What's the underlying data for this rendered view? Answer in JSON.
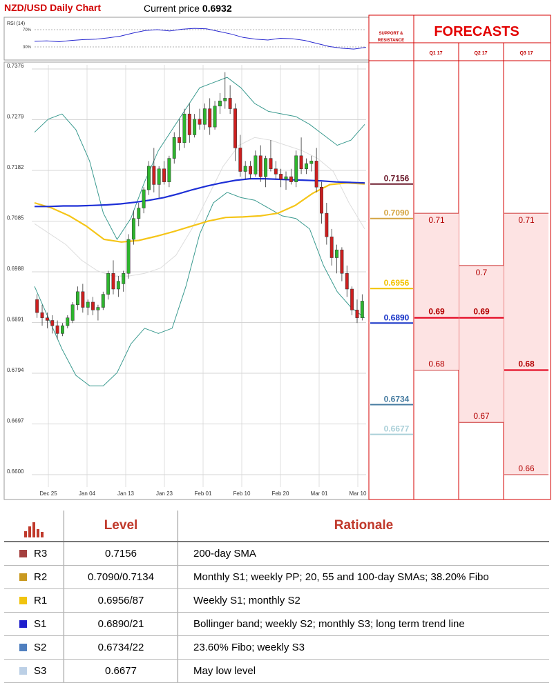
{
  "header": {
    "title": "NZD/USD Daily Chart",
    "price_label": "Current price ",
    "price_value": "0.6932"
  },
  "rsi": {
    "label": "RSI (14)",
    "levels": [
      "70%",
      "30%"
    ],
    "series": [
      0.43,
      0.44,
      0.42,
      0.45,
      0.47,
      0.48,
      0.51,
      0.55,
      0.62,
      0.68,
      0.7,
      0.67,
      0.71,
      0.73,
      0.72,
      0.66,
      0.6,
      0.52,
      0.48,
      0.46,
      0.5,
      0.49,
      0.45,
      0.38,
      0.31,
      0.27,
      0.25,
      0.29
    ]
  },
  "panel": {
    "sr_heading": [
      "SUPPORT &",
      "RESISTANCE"
    ],
    "forecast_heading": "FORECASTS",
    "quarters": [
      "Q1 17",
      "Q2 17",
      "Q3 17"
    ]
  },
  "colors": {
    "title": "#d10000",
    "candle_up": "#2db52d",
    "candle_down": "#cc1f1f",
    "sma200": "#1d2fd6",
    "sma_yellow": "#f5c518",
    "bollinger": "#3a9a8f",
    "forecast_fill": "#fde3e3",
    "forecast_line": "#e3001b",
    "panel_border": "#d40000"
  },
  "chart_data": {
    "type": "candlestick",
    "title": "NZD/USD Daily Chart",
    "y_ticks": [
      0.7376,
      0.7279,
      0.7182,
      0.7085,
      0.6988,
      0.6891,
      0.6794,
      0.6697,
      0.66
    ],
    "ylim": [
      0.66,
      0.7376
    ],
    "x_ticks": [
      "Dec 25",
      "Jan 04",
      "Jan 13",
      "Jan 23",
      "Feb 01",
      "Feb 10",
      "Feb 20",
      "Mar 01",
      "Mar 10"
    ],
    "grid": true,
    "candles": [
      [
        0.6935,
        0.6945,
        0.69,
        0.691
      ],
      [
        0.691,
        0.6925,
        0.6885,
        0.69
      ],
      [
        0.69,
        0.691,
        0.688,
        0.6895
      ],
      [
        0.6895,
        0.6905,
        0.687,
        0.6885
      ],
      [
        0.6885,
        0.6895,
        0.686,
        0.687
      ],
      [
        0.687,
        0.689,
        0.6865,
        0.6885
      ],
      [
        0.6885,
        0.6905,
        0.688,
        0.69
      ],
      [
        0.6895,
        0.693,
        0.689,
        0.6925
      ],
      [
        0.6925,
        0.696,
        0.6915,
        0.695
      ],
      [
        0.695,
        0.6965,
        0.691,
        0.692
      ],
      [
        0.692,
        0.6935,
        0.6905,
        0.693
      ],
      [
        0.693,
        0.694,
        0.6905,
        0.6915
      ],
      [
        0.6915,
        0.6925,
        0.6895,
        0.692
      ],
      [
        0.692,
        0.695,
        0.6915,
        0.6945
      ],
      [
        0.6945,
        0.699,
        0.6935,
        0.6985
      ],
      [
        0.6985,
        0.701,
        0.6945,
        0.6955
      ],
      [
        0.6955,
        0.698,
        0.694,
        0.697
      ],
      [
        0.6965,
        0.699,
        0.695,
        0.6985
      ],
      [
        0.6985,
        0.706,
        0.6975,
        0.705
      ],
      [
        0.705,
        0.7105,
        0.704,
        0.709
      ],
      [
        0.709,
        0.712,
        0.7075,
        0.711
      ],
      [
        0.711,
        0.715,
        0.71,
        0.7145
      ],
      [
        0.7145,
        0.72,
        0.7135,
        0.719
      ],
      [
        0.719,
        0.7225,
        0.714,
        0.7155
      ],
      [
        0.7155,
        0.719,
        0.713,
        0.7185
      ],
      [
        0.7185,
        0.72,
        0.7155,
        0.716
      ],
      [
        0.716,
        0.721,
        0.715,
        0.7205
      ],
      [
        0.7205,
        0.7255,
        0.7195,
        0.7245
      ],
      [
        0.7245,
        0.728,
        0.722,
        0.7235
      ],
      [
        0.7235,
        0.73,
        0.7225,
        0.729
      ],
      [
        0.729,
        0.731,
        0.7235,
        0.725
      ],
      [
        0.725,
        0.729,
        0.7245,
        0.728
      ],
      [
        0.728,
        0.73,
        0.726,
        0.727
      ],
      [
        0.727,
        0.731,
        0.726,
        0.73
      ],
      [
        0.73,
        0.732,
        0.725,
        0.7265
      ],
      [
        0.7265,
        0.7315,
        0.726,
        0.7305
      ],
      [
        0.7305,
        0.733,
        0.729,
        0.7315
      ],
      [
        0.7315,
        0.737,
        0.73,
        0.732
      ],
      [
        0.732,
        0.7345,
        0.729,
        0.73
      ],
      [
        0.73,
        0.731,
        0.72,
        0.7225
      ],
      [
        0.7225,
        0.725,
        0.717,
        0.718
      ],
      [
        0.718,
        0.72,
        0.7165,
        0.719
      ],
      [
        0.719,
        0.72,
        0.7165,
        0.7175
      ],
      [
        0.7175,
        0.722,
        0.717,
        0.721
      ],
      [
        0.721,
        0.723,
        0.716,
        0.717
      ],
      [
        0.717,
        0.721,
        0.715,
        0.7205
      ],
      [
        0.7205,
        0.724,
        0.718,
        0.7185
      ],
      [
        0.7185,
        0.72,
        0.7165,
        0.7175
      ],
      [
        0.7175,
        0.7185,
        0.715,
        0.7165
      ],
      [
        0.7165,
        0.718,
        0.7145,
        0.717
      ],
      [
        0.717,
        0.7185,
        0.7155,
        0.716
      ],
      [
        0.716,
        0.722,
        0.715,
        0.721
      ],
      [
        0.721,
        0.7245,
        0.7175,
        0.7185
      ],
      [
        0.7185,
        0.7205,
        0.7175,
        0.7195
      ],
      [
        0.7195,
        0.721,
        0.718,
        0.72
      ],
      [
        0.72,
        0.7225,
        0.714,
        0.715
      ],
      [
        0.715,
        0.716,
        0.708,
        0.71
      ],
      [
        0.71,
        0.712,
        0.704,
        0.7055
      ],
      [
        0.7055,
        0.707,
        0.7,
        0.7015
      ],
      [
        0.7015,
        0.704,
        0.6985,
        0.703
      ],
      [
        0.703,
        0.7035,
        0.697,
        0.6985
      ],
      [
        0.6985,
        0.7,
        0.694,
        0.6955
      ],
      [
        0.6955,
        0.696,
        0.6905,
        0.6915
      ],
      [
        0.6915,
        0.6935,
        0.689,
        0.69
      ],
      [
        0.69,
        0.6945,
        0.6895,
        0.6932
      ]
    ],
    "sma200": [
      0.7113,
      0.7113,
      0.7114,
      0.7114,
      0.7115,
      0.7116,
      0.7118,
      0.7121,
      0.7125,
      0.713,
      0.7137,
      0.7145,
      0.7152,
      0.7158,
      0.7163,
      0.7166,
      0.7166,
      0.7165,
      0.7164,
      0.7163,
      0.7162,
      0.716,
      0.7159,
      0.7158
    ],
    "sma_yellow": [
      0.712,
      0.711,
      0.7095,
      0.7075,
      0.705,
      0.7045,
      0.7048,
      0.7056,
      0.7065,
      0.7075,
      0.7085,
      0.7092,
      0.7093,
      0.7095,
      0.71,
      0.7115,
      0.7138,
      0.7155,
      0.7158,
      0.7156
    ],
    "bb_upper": [
      0.7255,
      0.728,
      0.729,
      0.726,
      0.72,
      0.71,
      0.705,
      0.709,
      0.716,
      0.722,
      0.726,
      0.73,
      0.734,
      0.735,
      0.736,
      0.734,
      0.731,
      0.7295,
      0.729,
      0.7285,
      0.727,
      0.725,
      0.723,
      0.724,
      0.727
    ],
    "bb_lower": [
      0.696,
      0.69,
      0.684,
      0.679,
      0.677,
      0.677,
      0.6795,
      0.685,
      0.688,
      0.687,
      0.688,
      0.696,
      0.706,
      0.712,
      0.714,
      0.713,
      0.7125,
      0.711,
      0.7095,
      0.709,
      0.707,
      0.7,
      0.695,
      0.692,
      0.69
    ],
    "bb_mid": [
      0.708,
      0.706,
      0.704,
      0.701,
      0.699,
      0.698,
      0.698,
      0.6985,
      0.6995,
      0.702,
      0.707,
      0.713,
      0.719,
      0.723,
      0.7245,
      0.724,
      0.723,
      0.722,
      0.7205,
      0.718,
      0.712,
      0.707
    ]
  },
  "support_resistance": [
    {
      "value": "0.7156",
      "color": "#6b1a2b"
    },
    {
      "value": "0.7090",
      "color": "#d4a441"
    },
    {
      "value": "0.6956",
      "color": "#f2c200"
    },
    {
      "value": "0.6890",
      "color": "#1330c6"
    },
    {
      "value": "0.6734",
      "color": "#457ba0"
    },
    {
      "value": "0.6677",
      "color": "#a9cfd8"
    }
  ],
  "forecasts": [
    {
      "quarter": "Q1 17",
      "high": 0.71,
      "main": 0.69,
      "low": 0.68,
      "high_label": "0.71",
      "main_label": "0.69",
      "low_label": "0.68"
    },
    {
      "quarter": "Q2 17",
      "high": 0.7,
      "main": 0.69,
      "low": 0.67,
      "high_label": "0.7",
      "main_label": "0.69",
      "low_label": "0.67"
    },
    {
      "quarter": "Q3 17",
      "high": 0.71,
      "main": 0.68,
      "low": 0.66,
      "high_label": "0.71",
      "main_label": "0.68",
      "low_label": "0.66"
    }
  ],
  "table": {
    "headers": {
      "level": "Level",
      "rationale": "Rationale"
    },
    "rows": [
      {
        "code": "R3",
        "color": "#a4403f",
        "level": "0.7156",
        "rationale": "200-day SMA"
      },
      {
        "code": "R2",
        "color": "#c9991f",
        "level": "0.7090/0.7134",
        "rationale": "Monthly S1; weekly PP; 20, 55 and 100-day SMAs; 38.20% Fibo"
      },
      {
        "code": "R1",
        "color": "#f1c40f",
        "level": "0.6956/87",
        "rationale": "Weekly S1; monthly S2"
      },
      {
        "code": "S1",
        "color": "#1f1fcc",
        "level": "0.6890/21",
        "rationale": "Bollinger band; weekly S2; monthly S3; long term trend line"
      },
      {
        "code": "S2",
        "color": "#4f7fbf",
        "level": "0.6734/22",
        "rationale": "23.60% Fibo; weekly S3"
      },
      {
        "code": "S3",
        "color": "#bcd0e6",
        "level": "0.6677",
        "rationale": "May low level"
      }
    ]
  }
}
